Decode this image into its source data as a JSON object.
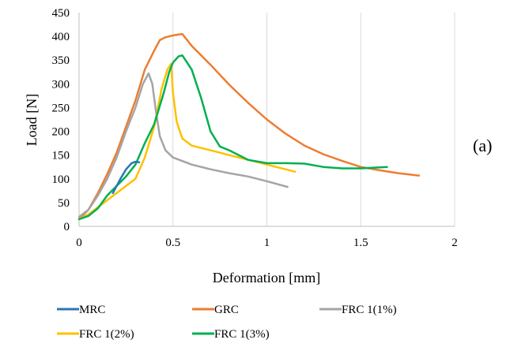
{
  "chart_data": {
    "type": "line",
    "xlabel": "Deformation [mm]",
    "ylabel": "Load [N]",
    "xlim": [
      0,
      2
    ],
    "ylim": [
      0,
      450
    ],
    "xticks": [
      0,
      0.5,
      1,
      1.5,
      2
    ],
    "xtick_labels": [
      "0",
      "0.5",
      "1",
      "1.5",
      "2"
    ],
    "yticks": [
      0,
      50,
      100,
      150,
      200,
      250,
      300,
      350,
      400,
      450
    ],
    "ytick_labels": [
      "0",
      "50",
      "100",
      "150",
      "200",
      "250",
      "300",
      "350",
      "400",
      "450"
    ],
    "grid": "vertical",
    "legend_position": "bottom",
    "panel_label": "(a)",
    "series": [
      {
        "name": "MRC",
        "color": "#2e75b6",
        "x": [
          0.18,
          0.2,
          0.22,
          0.25,
          0.28,
          0.3,
          0.32
        ],
        "y": [
          70,
          85,
          100,
          120,
          133,
          136,
          135
        ]
      },
      {
        "name": "GRC",
        "color": "#ed7d31",
        "x": [
          0,
          0.05,
          0.1,
          0.15,
          0.2,
          0.25,
          0.3,
          0.35,
          0.4,
          0.43,
          0.46,
          0.5,
          0.55,
          0.6,
          0.7,
          0.8,
          0.9,
          1.0,
          1.1,
          1.2,
          1.3,
          1.4,
          1.5,
          1.6,
          1.7,
          1.81
        ],
        "y": [
          15,
          35,
          70,
          110,
          155,
          210,
          265,
          330,
          370,
          392,
          398,
          402,
          405,
          380,
          340,
          298,
          260,
          225,
          195,
          170,
          152,
          138,
          125,
          118,
          112,
          107
        ]
      },
      {
        "name": "FRC 1(1%)",
        "color": "#a5a5a5",
        "x": [
          0,
          0.05,
          0.1,
          0.15,
          0.2,
          0.25,
          0.3,
          0.34,
          0.37,
          0.39,
          0.41,
          0.43,
          0.46,
          0.5,
          0.6,
          0.7,
          0.8,
          0.9,
          1.0,
          1.11
        ],
        "y": [
          20,
          35,
          65,
          100,
          145,
          200,
          250,
          300,
          322,
          300,
          240,
          190,
          160,
          145,
          130,
          120,
          112,
          105,
          95,
          83
        ]
      },
      {
        "name": "FRC 1(2%)",
        "color": "#ffc000",
        "x": [
          0,
          0.05,
          0.1,
          0.15,
          0.2,
          0.25,
          0.3,
          0.35,
          0.4,
          0.44,
          0.47,
          0.49,
          0.5,
          0.52,
          0.55,
          0.6,
          0.7,
          0.8,
          0.9,
          1.0,
          1.15
        ],
        "y": [
          15,
          25,
          40,
          55,
          70,
          85,
          100,
          145,
          210,
          290,
          330,
          342,
          280,
          220,
          185,
          170,
          160,
          150,
          140,
          130,
          115
        ]
      },
      {
        "name": "FRC 1(3%)",
        "color": "#00b050",
        "x": [
          0,
          0.05,
          0.1,
          0.15,
          0.2,
          0.25,
          0.3,
          0.35,
          0.4,
          0.45,
          0.48,
          0.5,
          0.53,
          0.55,
          0.6,
          0.65,
          0.7,
          0.75,
          0.8,
          0.9,
          1.0,
          1.1,
          1.2,
          1.3,
          1.4,
          1.5,
          1.64
        ],
        "y": [
          15,
          22,
          38,
          65,
          85,
          105,
          130,
          175,
          215,
          280,
          325,
          345,
          358,
          360,
          330,
          270,
          200,
          168,
          160,
          140,
          133,
          133,
          132,
          125,
          122,
          122,
          125
        ]
      }
    ]
  }
}
